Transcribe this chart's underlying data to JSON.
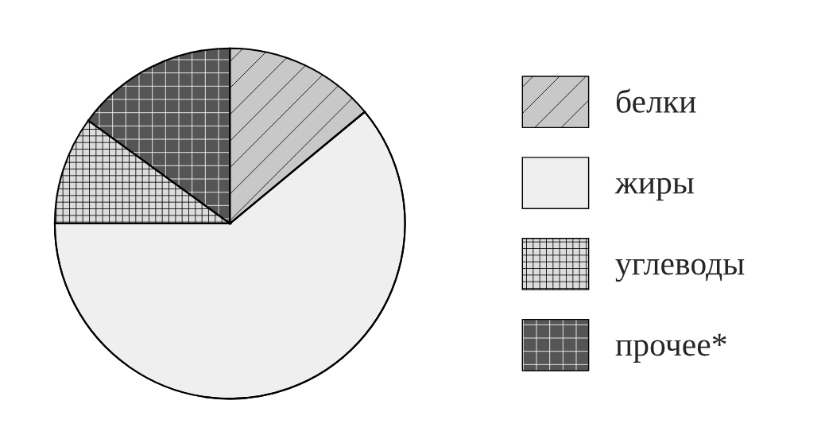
{
  "chart_data": {
    "type": "pie",
    "categories": [
      "белки",
      "жиры",
      "углеводы",
      "прочее*"
    ],
    "values": [
      14,
      61,
      10,
      15
    ],
    "colors": [
      "#c8c8c8",
      "#efefef",
      "#dcdcdc",
      "#555555"
    ],
    "legend": "right"
  }
}
